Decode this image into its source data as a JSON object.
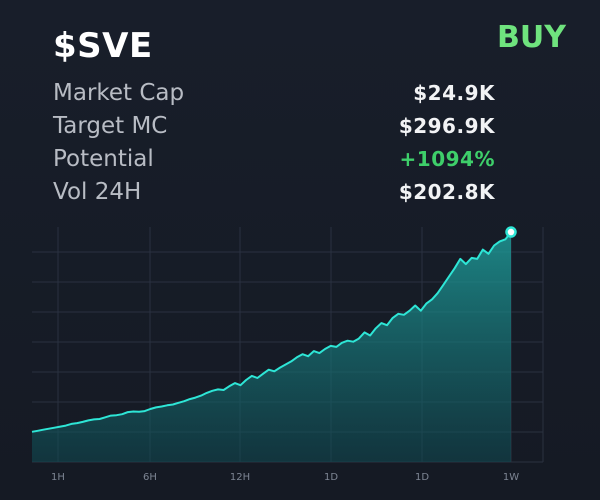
{
  "header": {
    "ticker": "$SVE",
    "buy_label": "BUY"
  },
  "stats": [
    {
      "label": "Market Cap",
      "value": "$24.9K"
    },
    {
      "label": "Target MC",
      "value": "$296.9K"
    },
    {
      "label": "Potential",
      "value": "+1094%"
    },
    {
      "label": "Vol 24H",
      "value": "$202.8K"
    }
  ],
  "colors": {
    "accent": "#2ee6d6",
    "buy": "#6fe37e",
    "positive": "#3ecf6a",
    "background": "#161c28"
  },
  "chart_data": {
    "type": "area",
    "title": "",
    "xlabel": "",
    "ylabel": "",
    "grid": true,
    "legend": "none",
    "x_tick_labels": [
      "1H",
      "6H",
      "12H",
      "1D",
      "1D",
      "1W"
    ],
    "ylim": [
      0,
      1
    ],
    "series": [
      {
        "values": [
          0.03,
          0.035,
          0.04,
          0.045,
          0.05,
          0.055,
          0.06,
          0.068,
          0.072,
          0.078,
          0.085,
          0.09,
          0.092,
          0.1,
          0.108,
          0.11,
          0.115,
          0.125,
          0.128,
          0.127,
          0.13,
          0.14,
          0.148,
          0.152,
          0.158,
          0.162,
          0.17,
          0.178,
          0.188,
          0.195,
          0.205,
          0.218,
          0.228,
          0.235,
          0.232,
          0.25,
          0.265,
          0.255,
          0.28,
          0.3,
          0.29,
          0.31,
          0.33,
          0.322,
          0.34,
          0.355,
          0.37,
          0.39,
          0.405,
          0.395,
          0.42,
          0.41,
          0.43,
          0.445,
          0.44,
          0.46,
          0.47,
          0.465,
          0.48,
          0.51,
          0.495,
          0.53,
          0.555,
          0.545,
          0.58,
          0.6,
          0.595,
          0.615,
          0.64,
          0.615,
          0.65,
          0.67,
          0.7,
          0.74,
          0.78,
          0.82,
          0.865,
          0.84,
          0.87,
          0.865,
          0.91,
          0.89,
          0.93,
          0.95,
          0.96,
          0.995
        ]
      }
    ]
  }
}
